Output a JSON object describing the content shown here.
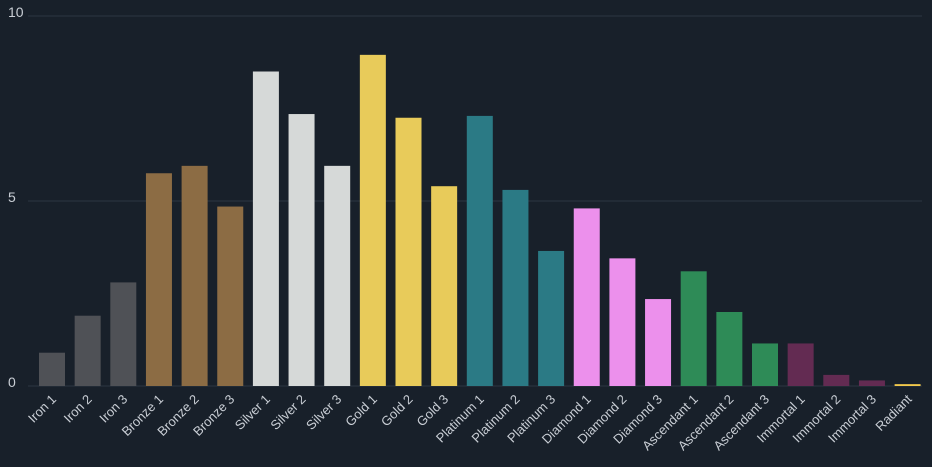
{
  "chart_data": {
    "type": "bar",
    "title": "",
    "xlabel": "",
    "ylabel": "",
    "ylim": [
      0,
      10
    ],
    "yticks": [
      "0",
      "5",
      "10"
    ],
    "grid": true,
    "categories": [
      "Iron 1",
      "Iron 2",
      "Iron 3",
      "Bronze 1",
      "Bronze 2",
      "Bronze 3",
      "Silver 1",
      "Silver 2",
      "Silver 3",
      "Gold 1",
      "Gold 2",
      "Gold 3",
      "Platinum 1",
      "Platinum 2",
      "Platinum 3",
      "Diamond 1",
      "Diamond 2",
      "Diamond 3",
      "Ascendant 1",
      "Ascendant 2",
      "Ascendant 3",
      "Immortal 1",
      "Immortal 2",
      "Immortal 3",
      "Radiant"
    ],
    "values": [
      0.9,
      1.9,
      2.8,
      5.75,
      5.95,
      4.85,
      8.5,
      7.35,
      5.95,
      8.95,
      7.25,
      5.4,
      7.3,
      5.3,
      3.65,
      4.8,
      3.45,
      2.35,
      3.1,
      2.0,
      1.15,
      1.15,
      0.3,
      0.15,
      0.05
    ],
    "colors": [
      "#4f5156",
      "#4f5156",
      "#4f5156",
      "#8c6c44",
      "#8c6c44",
      "#8c6c44",
      "#d6d9d8",
      "#d6d9d8",
      "#d6d9d8",
      "#e8cb5a",
      "#e8cb5a",
      "#e8cb5a",
      "#2b7a85",
      "#2b7a85",
      "#2b7a85",
      "#ec90ec",
      "#ec90ec",
      "#ec90ec",
      "#2e8b57",
      "#2e8b57",
      "#2e8b57",
      "#632b52",
      "#632b52",
      "#632b52",
      "#f2c94c"
    ],
    "background": "#18202a",
    "gridColor": "#2c3642",
    "tickColor": "#c9ced5"
  }
}
